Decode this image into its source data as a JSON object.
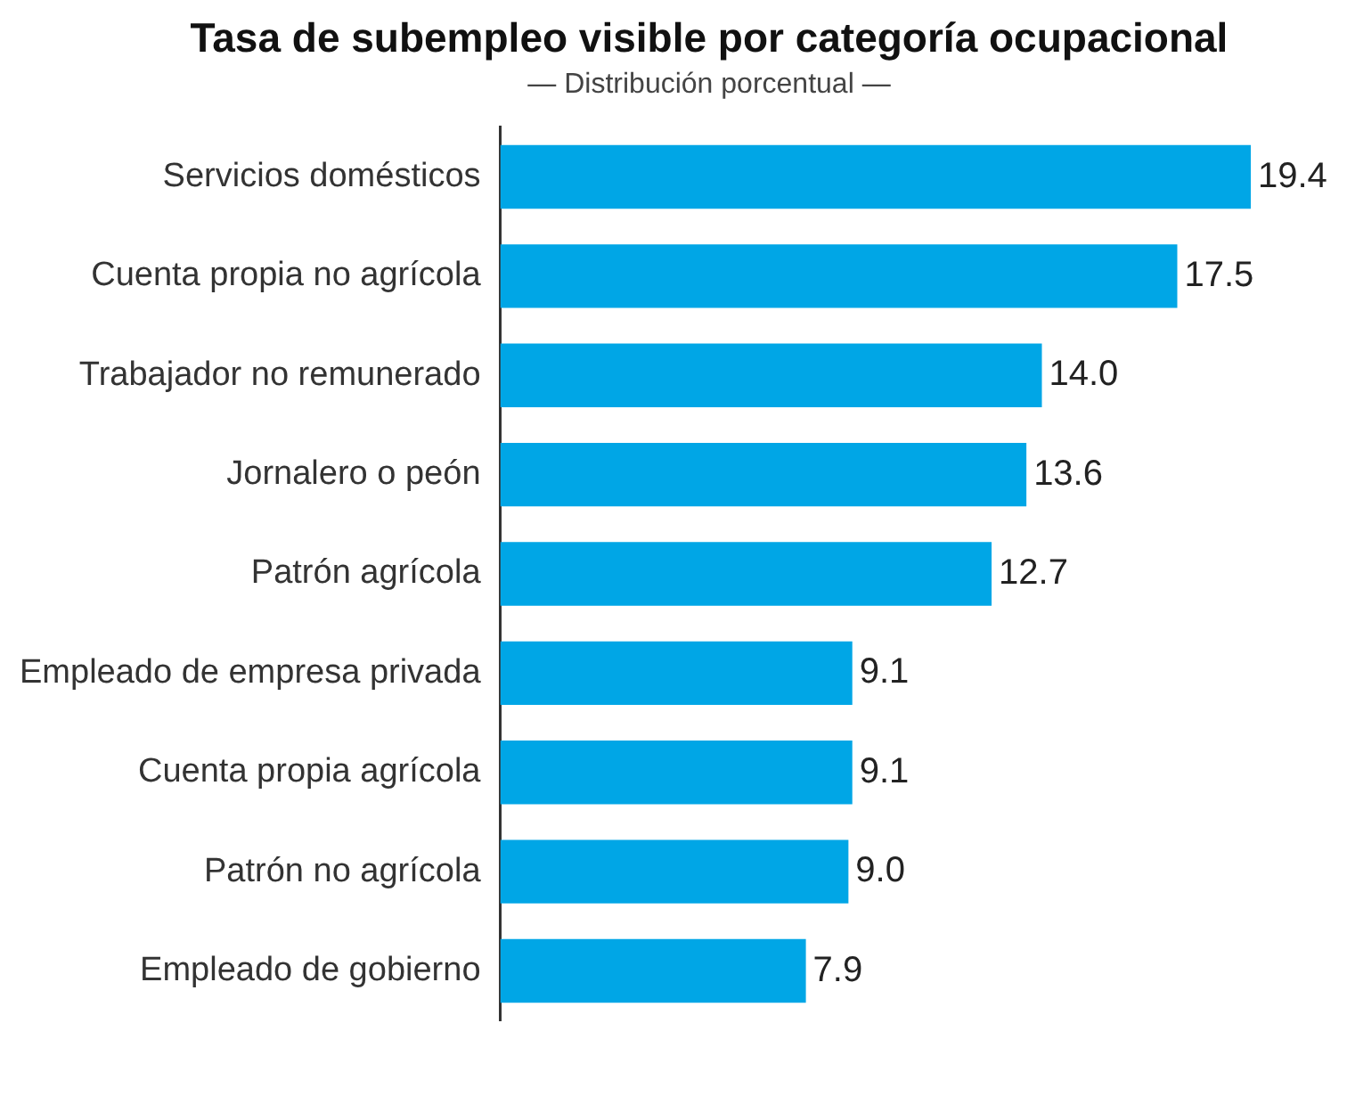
{
  "chart_data": {
    "type": "bar",
    "orientation": "horizontal",
    "title": "Tasa de subempleo visible por categoría ocupacional",
    "subtitle": "— Distribución porcentual —",
    "categories": [
      "Servicios domésticos",
      "Cuenta propia no agrícola",
      "Trabajador no remunerado",
      "Jornalero o peón",
      "Patrón agrícola",
      "Empleado de empresa privada",
      "Cuenta propia agrícola",
      "Patrón no agrícola",
      "Empleado de gobierno"
    ],
    "values": [
      19.4,
      17.5,
      14.0,
      13.6,
      12.7,
      9.1,
      9.1,
      9.0,
      7.9
    ],
    "value_labels": [
      "19.4",
      "17.5",
      "14.0",
      "13.6",
      "12.7",
      "9.1",
      "9.1",
      "9.0",
      "7.9"
    ],
    "color": "#00a6e6",
    "legend": false
  }
}
